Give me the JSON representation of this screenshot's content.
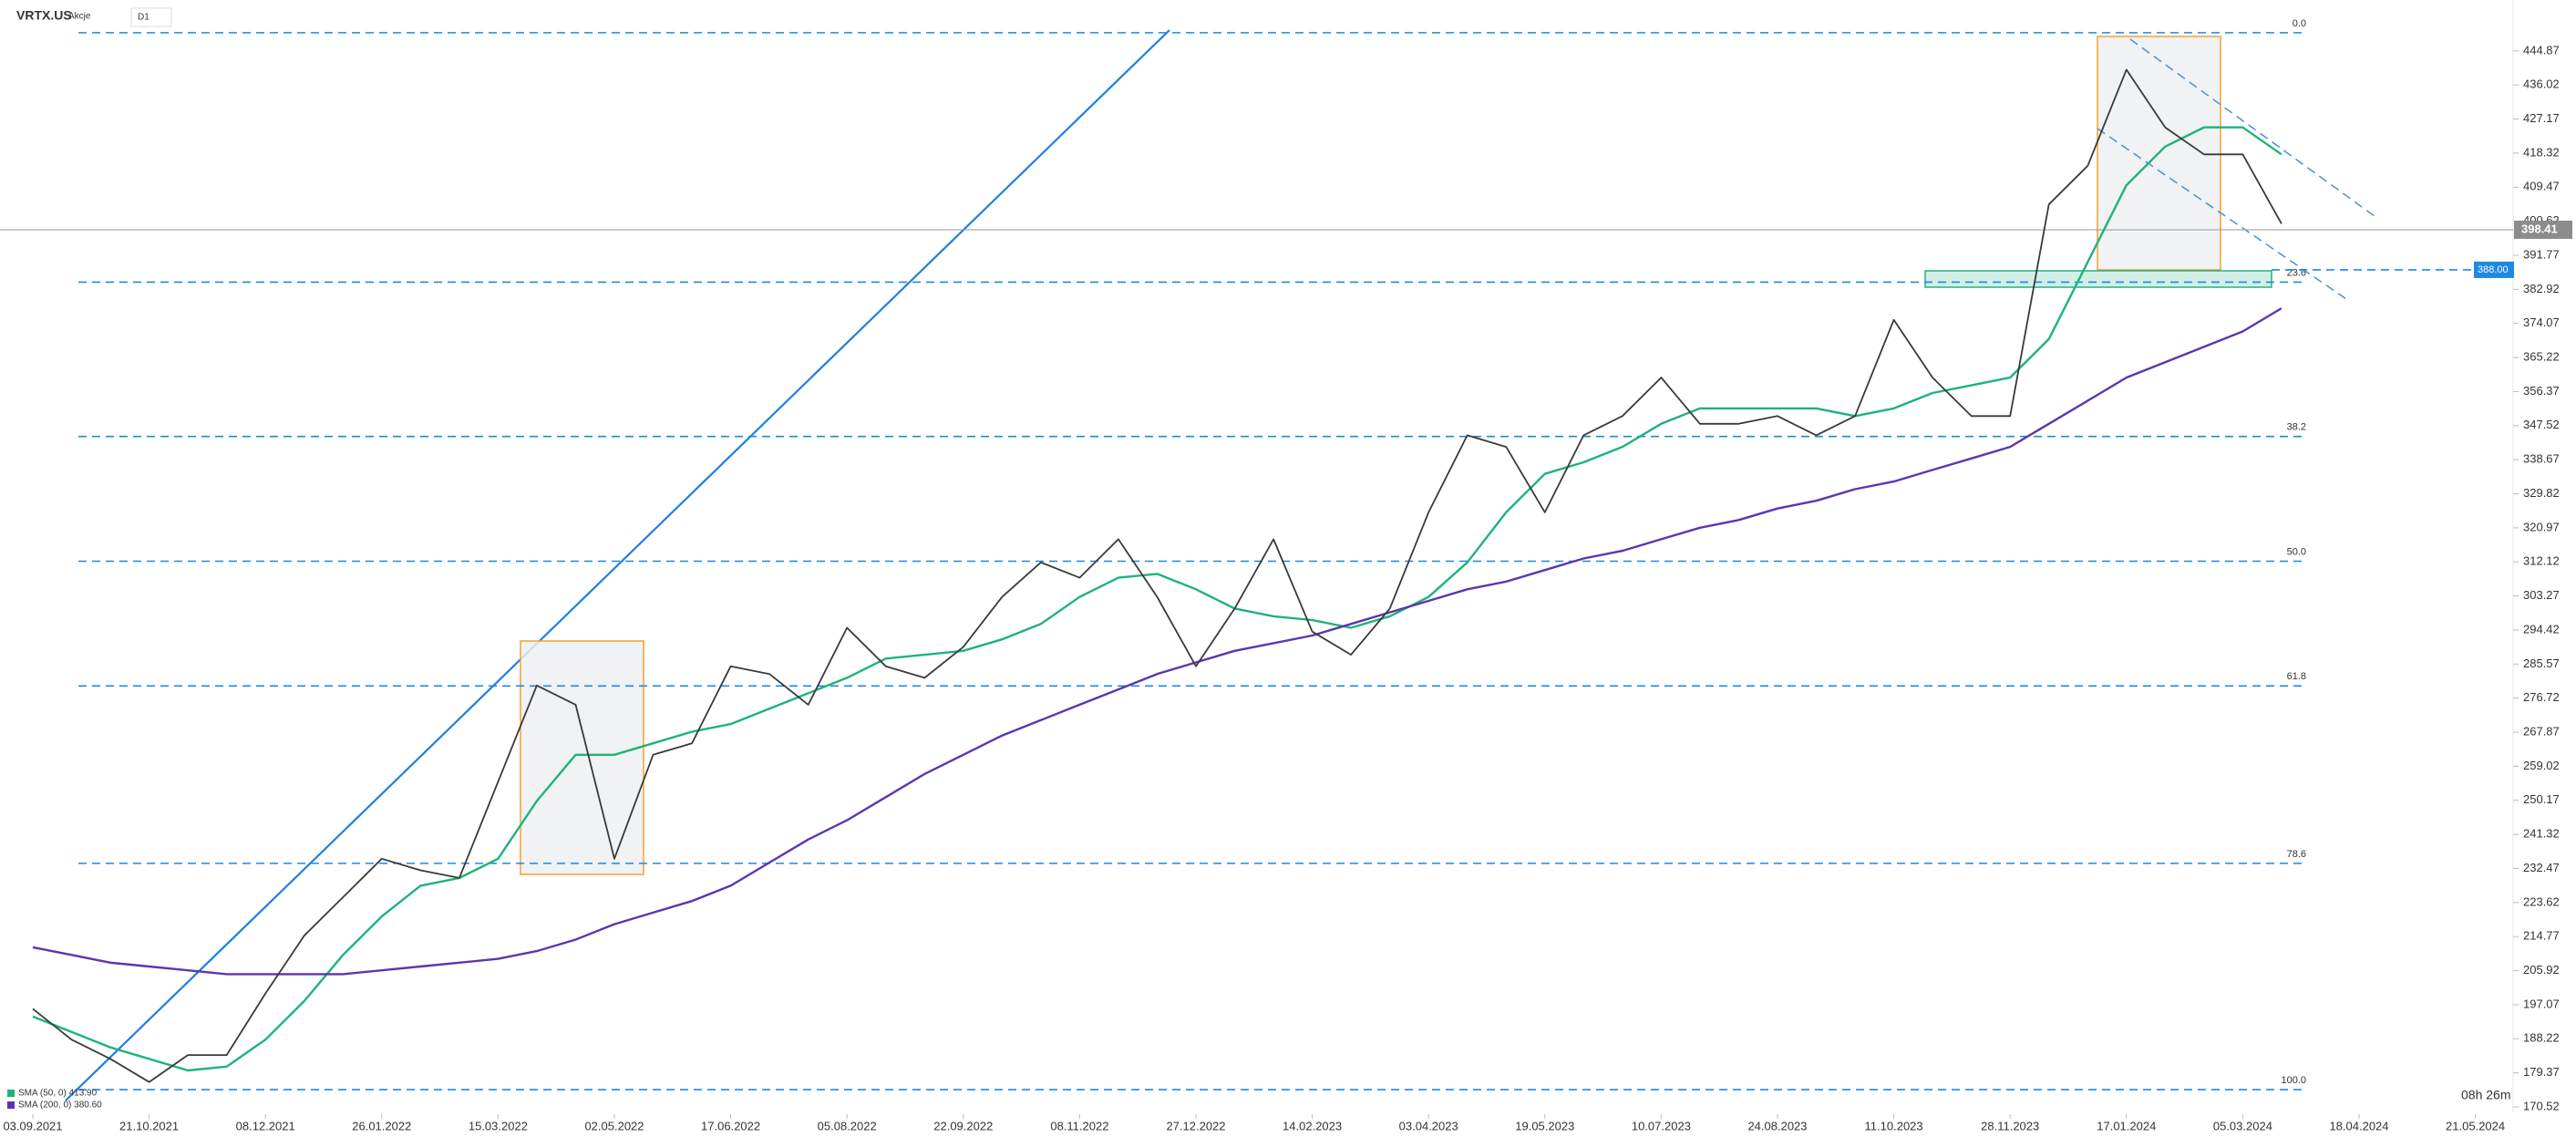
{
  "header": {
    "symbol": "VRTX.US",
    "asset_class": "Akcje",
    "timeframe": "D1",
    "timer": "08h 26m"
  },
  "chart_data": {
    "type": "line",
    "x": [
      "03.09.2021",
      null,
      null,
      "21.10.2021",
      null,
      null,
      "08.12.2021",
      null,
      null,
      "26.01.2022",
      null,
      null,
      "15.03.2022",
      null,
      null,
      "02.05.2022",
      null,
      null,
      "17.06.2022",
      null,
      null,
      "05.08.2022",
      null,
      null,
      "22.09.2022",
      null,
      null,
      "08.11.2022",
      null,
      null,
      "27.12.2022",
      null,
      null,
      "14.02.2023",
      null,
      null,
      "03.04.2023",
      null,
      null,
      "19.05.2023",
      null,
      null,
      "10.07.2023",
      null,
      null,
      "24.08.2023",
      null,
      null,
      "11.10.2023",
      null,
      null,
      "28.11.2023",
      null,
      null,
      "17.01.2024",
      null,
      null,
      "05.03.2024",
      null,
      null,
      "18.04.2024",
      null,
      null,
      "21.05.2024"
    ],
    "values": [
      196,
      188,
      183,
      177,
      184,
      184,
      200,
      215,
      225,
      235,
      232,
      230,
      255,
      280,
      275,
      235,
      262,
      265,
      285,
      283,
      275,
      295,
      285,
      282,
      290,
      303,
      312,
      308,
      318,
      303,
      285,
      300,
      318,
      294,
      288,
      300,
      325,
      345,
      342,
      325,
      345,
      350,
      360,
      348,
      348,
      350,
      345,
      350,
      375,
      360,
      350,
      350,
      405,
      415,
      440,
      425,
      418,
      418,
      400,
      null,
      null,
      null,
      null,
      null
    ],
    "color": "#3a3a3a",
    "series": [
      {
        "name": "SMA (50, 0) 413.90",
        "color": "#1fb37a",
        "values": [
          194,
          190,
          186,
          183,
          180,
          181,
          188,
          198,
          210,
          220,
          228,
          230,
          235,
          250,
          262,
          262,
          265,
          268,
          270,
          274,
          278,
          282,
          287,
          288,
          289,
          292,
          296,
          303,
          308,
          309,
          305,
          300,
          298,
          297,
          295,
          298,
          303,
          312,
          325,
          335,
          338,
          342,
          348,
          352,
          352,
          352,
          352,
          350,
          352,
          356,
          358,
          360,
          370,
          390,
          410,
          420,
          425,
          425,
          418,
          null,
          null,
          null,
          null,
          null
        ]
      },
      {
        "name": "SMA (200, 0) 380.60",
        "color": "#5b36b0",
        "values": [
          212,
          210,
          208,
          207,
          206,
          205,
          205,
          205,
          205,
          206,
          207,
          208,
          209,
          211,
          214,
          218,
          221,
          224,
          228,
          234,
          240,
          245,
          251,
          257,
          262,
          267,
          271,
          275,
          279,
          283,
          286,
          289,
          291,
          293,
          296,
          299,
          302,
          305,
          307,
          310,
          313,
          315,
          318,
          321,
          323,
          326,
          328,
          331,
          333,
          336,
          339,
          342,
          348,
          354,
          360,
          364,
          368,
          372,
          378,
          null,
          null,
          null,
          null,
          null
        ]
      }
    ],
    "ylim": [
      169.1,
      458.1
    ],
    "yticks": [
      444.87,
      436.02,
      427.17,
      418.32,
      409.47,
      400.62,
      391.77,
      382.92,
      374.07,
      365.22,
      356.37,
      347.52,
      338.67,
      329.82,
      320.97,
      312.12,
      303.27,
      294.42,
      {
        "value": 285.57,
        "label": "285.57"
      },
      276.72,
      267.87,
      259.02,
      250.17,
      241.32,
      232.47,
      223.62,
      214.77,
      205.92,
      197.07,
      188.22,
      179.37,
      170.52
    ],
    "fib_levels": [
      {
        "label": "0.0",
        "value": 449.6
      },
      {
        "label": "23.6",
        "value": 384.8
      },
      {
        "label": "38.2",
        "value": 344.7
      },
      {
        "label": "50.0",
        "value": 312.3
      },
      {
        "label": "61.8",
        "value": 279.9
      },
      {
        "label": "78.6",
        "value": 233.8
      },
      {
        "label": "100.0",
        "value": 175.0
      }
    ],
    "last_price": 398.41,
    "alert_level": {
      "value": 388,
      "label": "388.00"
    }
  }
}
